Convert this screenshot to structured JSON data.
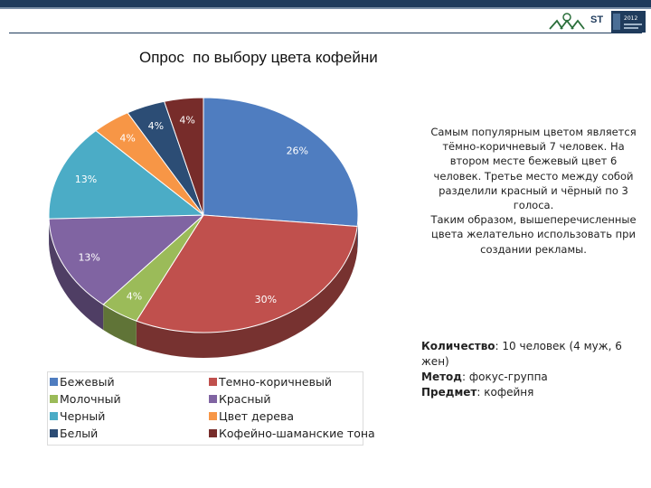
{
  "header": {
    "brand_text": "ST",
    "badge_text": "2012"
  },
  "title": "Опрос  по выбору цвета кофейни",
  "chart_data": {
    "type": "pie",
    "title": "Опрос  по выбору цвета кофейни",
    "unit": "%",
    "slices": [
      {
        "name": "Бежевый",
        "value": 26,
        "label": "26%",
        "color": "#4f7dc0"
      },
      {
        "name": "Темно-коричневый",
        "value": 30,
        "label": "30%",
        "color": "#c0504d"
      },
      {
        "name": "Молочный",
        "value": 4,
        "label": "4%",
        "color": "#9bbb59"
      },
      {
        "name": "Красный",
        "value": 13,
        "label": "13%",
        "color": "#8064a2"
      },
      {
        "name": "Черный",
        "value": 13,
        "label": "13%",
        "color": "#4bacc6"
      },
      {
        "name": "Цвет дерева",
        "value": 4,
        "label": "4%",
        "color": "#f79646"
      },
      {
        "name": "Белый",
        "value": 4,
        "label": "4%",
        "color": "#2c4d75"
      },
      {
        "name": "Кофейно-шаманские тона",
        "value": 4,
        "label": "4%",
        "color": "#772c2a"
      }
    ],
    "legend_placement": "bottom-left"
  },
  "legend": [
    {
      "label": "Бежевый",
      "color": "#4f7dc0"
    },
    {
      "label": "Темно-коричневый",
      "color": "#c0504d"
    },
    {
      "label": "Молочный",
      "color": "#9bbb59"
    },
    {
      "label": "Красный",
      "color": "#8064a2"
    },
    {
      "label": "Черный",
      "color": "#4bacc6"
    },
    {
      "label": "Цвет дерева",
      "color": "#f79646"
    },
    {
      "label": "Белый",
      "color": "#2c4d75"
    },
    {
      "label": "Кофейно-шаманские тона",
      "color": "#772c2a"
    }
  ],
  "description": [
    "Самым популярным цветом является тёмно-коричневый 7 человек. На втором месте бежевый цвет 6 человек. Третье место между собой разделили красный и чёрный по 3 голоса.",
    "Таким образом, вышеперечисленные цвета желательно использовать при создании рекламы."
  ],
  "info": [
    {
      "key": "Количество",
      "value": ": 10 человек (4 муж, 6 жен)"
    },
    {
      "key": "Метод",
      "value": ": фокус-группа"
    },
    {
      "key": "Предмет",
      "value": ": кофейня"
    }
  ]
}
